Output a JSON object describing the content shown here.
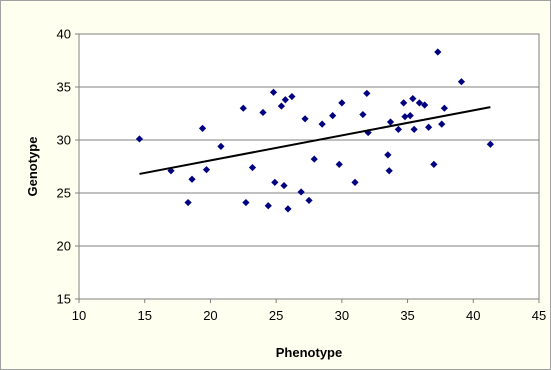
{
  "chart_data": {
    "type": "scatter",
    "title": "",
    "xlabel": "Phenotype",
    "ylabel": "Genotype",
    "xlim": [
      10,
      45
    ],
    "ylim": [
      15,
      40
    ],
    "xticks": [
      10,
      15,
      20,
      25,
      30,
      35,
      40,
      45
    ],
    "yticks": [
      15,
      20,
      25,
      30,
      35,
      40
    ],
    "xtick_labels": [
      "10",
      "15",
      "20",
      "25",
      "30",
      "35",
      "40",
      "45"
    ],
    "ytick_labels": [
      "15",
      "20",
      "25",
      "30",
      "35",
      "40"
    ],
    "grid": "horizontal",
    "legend": "none",
    "marker_color": "#000080",
    "trendline_color": "#000000",
    "background_color": "#ffffff",
    "frame_color": "#fffff0",
    "series": [
      {
        "x": [
          14.6,
          17.0,
          18.3,
          18.6,
          19.4,
          19.7,
          20.8,
          22.5,
          22.7,
          23.2,
          24.0,
          24.4,
          24.8,
          24.9,
          25.4,
          25.6,
          25.7,
          25.9,
          26.2,
          26.9,
          27.2,
          27.5,
          27.9,
          28.5,
          29.3,
          29.8,
          30.0,
          31.0,
          31.6,
          31.9,
          32.0,
          33.5,
          33.6,
          33.7,
          34.3,
          34.7,
          34.8,
          35.2,
          35.4,
          35.5,
          35.9,
          36.3,
          36.6,
          37.0,
          37.3,
          37.6,
          37.8,
          39.1,
          41.3
        ],
        "y": [
          30.1,
          27.1,
          24.1,
          26.3,
          31.1,
          27.2,
          29.4,
          33.0,
          24.1,
          27.4,
          32.6,
          23.8,
          34.5,
          26.0,
          33.2,
          25.7,
          33.8,
          23.5,
          34.1,
          25.1,
          32.0,
          24.3,
          28.2,
          31.5,
          32.3,
          27.7,
          33.5,
          26.0,
          32.4,
          34.4,
          30.7,
          28.6,
          27.1,
          31.7,
          31.0,
          33.5,
          32.2,
          32.3,
          33.9,
          31.0,
          33.5,
          33.3,
          31.2,
          27.7,
          38.3,
          31.5,
          33.0,
          35.5,
          29.6
        ]
      }
    ],
    "trendline": {
      "x": [
        14.6,
        41.3
      ],
      "y": [
        26.8,
        33.1
      ]
    }
  }
}
